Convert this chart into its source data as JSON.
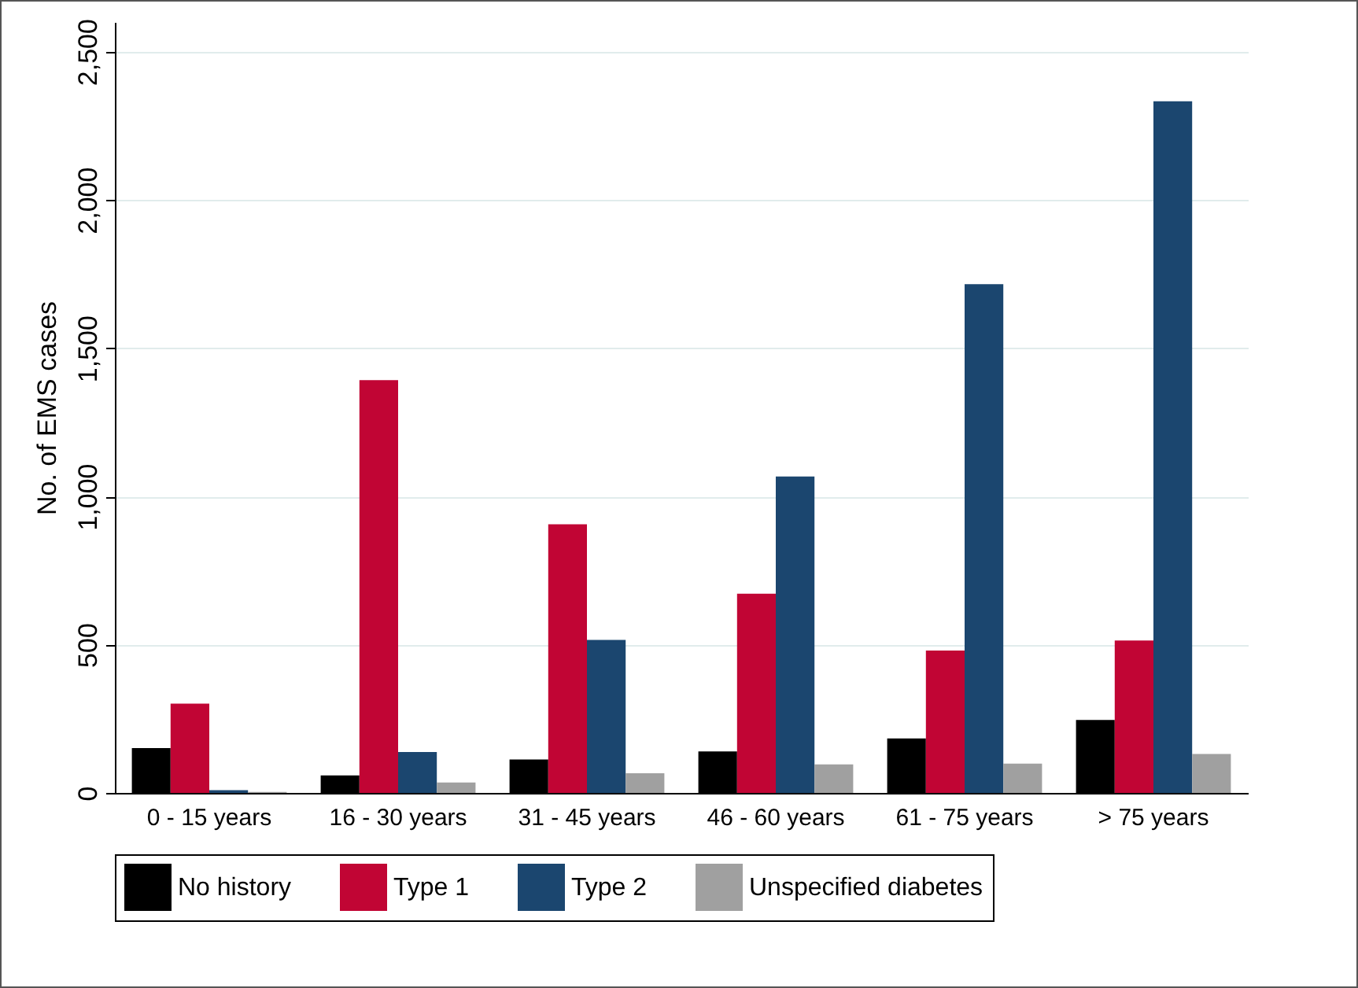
{
  "chart_data": {
    "type": "bar",
    "ylabel": "No. of EMS cases",
    "categories": [
      "0 - 15 years",
      "16 - 30 years",
      "31 - 45 years",
      "46 - 60 years",
      "61 - 75 years",
      "> 75 years"
    ],
    "series": [
      {
        "name": "No history",
        "color": "#000000",
        "values": [
          151,
          59,
          113,
          140,
          184,
          246
        ]
      },
      {
        "name": "Type 1",
        "color": "#c10534",
        "values": [
          301,
          1392,
          906,
          672,
          480,
          514
        ]
      },
      {
        "name": "Type 2",
        "color": "#1b466f",
        "values": [
          9,
          138,
          516,
          1067,
          1716,
          2333
        ]
      },
      {
        "name": "Unspecified diabetes",
        "color": "#a0a0a0",
        "values": [
          3,
          35,
          66,
          96,
          99,
          131
        ]
      }
    ],
    "ylim": [
      0,
      2600
    ],
    "yticks": [
      {
        "value": 0,
        "label": "0"
      },
      {
        "value": 500,
        "label": "500"
      },
      {
        "value": 1000,
        "label": "1,000"
      },
      {
        "value": 1500,
        "label": "1,500"
      },
      {
        "value": 2000,
        "label": "2,000"
      },
      {
        "value": 2500,
        "label": "2,500"
      }
    ],
    "grid": "y",
    "legend": "bottom"
  }
}
